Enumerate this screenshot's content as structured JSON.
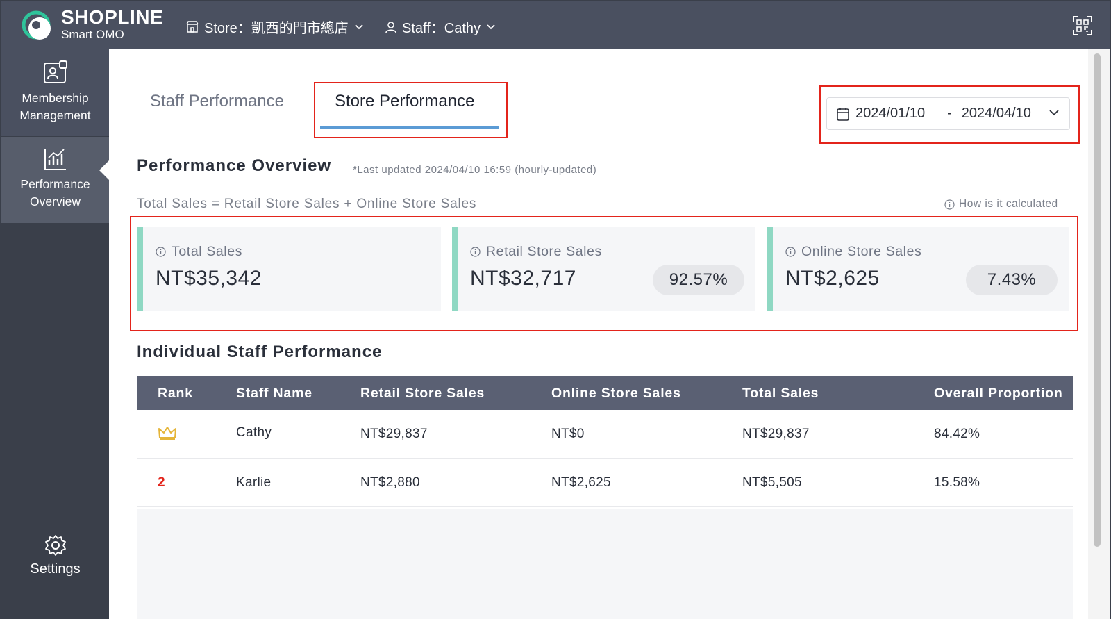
{
  "header": {
    "brand_main": "SHOPLINE",
    "brand_sub": "Smart OMO",
    "store_label": "Store：凱西的門市總店",
    "staff_label": "Staff：Cathy"
  },
  "sidebar": {
    "items": [
      {
        "line1": "Membership",
        "line2": "Management"
      },
      {
        "line1": "Performance",
        "line2": "Overview"
      },
      {
        "line1": "Settings"
      }
    ]
  },
  "tabs": [
    {
      "label": "Staff Performance",
      "active": false
    },
    {
      "label": "Store Performance",
      "active": true
    }
  ],
  "date_range": {
    "start": "2024/01/10",
    "separator": "-",
    "end": "2024/04/10"
  },
  "overview": {
    "title": "Performance Overview",
    "last_updated": "*Last updated 2024/04/10 16:59 (hourly-updated)",
    "formula": "Total Sales = Retail Store Sales + Online Store Sales",
    "how_calculated": "How is it calculated",
    "cards": [
      {
        "title": "Total Sales",
        "value": "NT$35,342"
      },
      {
        "title": "Retail Store Sales",
        "value": "NT$32,717",
        "percent": "92.57%"
      },
      {
        "title": "Online Store Sales",
        "value": "NT$2,625",
        "percent": "7.43%"
      }
    ]
  },
  "staff_table": {
    "title": "Individual Staff Performance",
    "columns": [
      "Rank",
      "Staff Name",
      "Retail Store Sales",
      "Online Store Sales",
      "Total Sales",
      "Overall Proportion"
    ],
    "rows": [
      {
        "rank_icon": "crown-icon",
        "name": "Cathy",
        "retail": "NT$29,837",
        "online": "NT$0",
        "total": "NT$29,837",
        "proportion": "84.42%"
      },
      {
        "rank": "2",
        "name": "Karlie",
        "retail": "NT$2,880",
        "online": "NT$2,625",
        "total": "NT$5,505",
        "proportion": "15.58%"
      }
    ]
  },
  "colors": {
    "topbar": "#4a5060",
    "sidebar": "#3a3f4a",
    "card_accent": "#8fd8c3",
    "highlight_box": "#e3241b",
    "tab_underline": "#5b9bd5",
    "table_header": "#5a6073"
  }
}
